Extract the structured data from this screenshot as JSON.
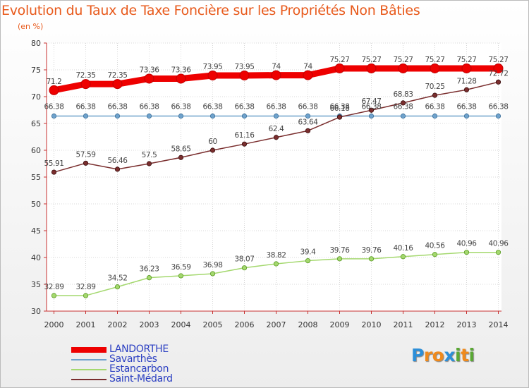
{
  "title": "Evolution du Taux de Taxe Foncière sur les Propriétés Non Bâties",
  "subtitle": "(en %)",
  "logo": {
    "text": "Proxiti",
    "letters": [
      {
        "ch": "P",
        "color": "#2d8fd8"
      },
      {
        "ch": "r",
        "color": "#f08a1c"
      },
      {
        "ch": "o",
        "color": "#f08a1c"
      },
      {
        "ch": "x",
        "color": "#2d8fd8"
      },
      {
        "ch": "i",
        "color": "#5aa834"
      },
      {
        "ch": "t",
        "color": "#f08a1c"
      },
      {
        "ch": "i",
        "color": "#5aa834"
      }
    ]
  },
  "chart_data": {
    "type": "line",
    "title": "Evolution du Taux de Taxe Foncière sur les Propriétés Non Bâties",
    "ylabel": "(en %)",
    "xlabel": "",
    "ylim": [
      30,
      80
    ],
    "yticks": [
      30,
      35,
      40,
      45,
      50,
      55,
      60,
      65,
      70,
      75,
      80
    ],
    "grid": true,
    "legend_position": "bottom-left",
    "categories": [
      "2000",
      "2001",
      "2002",
      "2003",
      "2004",
      "2005",
      "2006",
      "2007",
      "2008",
      "2009",
      "2010",
      "2011",
      "2012",
      "2013",
      "2014"
    ],
    "series": [
      {
        "name": "LANDORTHE",
        "color": "#ee0000",
        "values": [
          71.2,
          72.35,
          72.35,
          73.36,
          73.36,
          73.95,
          73.95,
          74,
          74,
          75.27,
          75.27,
          75.27,
          75.27,
          75.27,
          75.27
        ],
        "labels": [
          "71.2",
          "72.35",
          "72.35",
          "73.36",
          "73.36",
          "73.95",
          "73.95",
          "74",
          "74",
          "75.27",
          "75.27",
          "75.27",
          "75.27",
          "75.27",
          "75.27"
        ]
      },
      {
        "name": "Savarthès",
        "color": "#6fa2cc",
        "values": [
          66.38,
          66.38,
          66.38,
          66.38,
          66.38,
          66.38,
          66.38,
          66.38,
          66.38,
          66.38,
          66.38,
          66.38,
          66.38,
          66.38,
          66.38
        ],
        "labels": [
          "66.38",
          "66.38",
          "66.38",
          "66.38",
          "66.38",
          "66.38",
          "66.38",
          "66.38",
          "66.38",
          "66.38",
          "66.38",
          "66.38",
          "66.38",
          "66.38",
          "66.38"
        ]
      },
      {
        "name": "Estancarbon",
        "color": "#a4d86e",
        "values": [
          32.89,
          32.89,
          34.52,
          36.23,
          36.59,
          36.98,
          38.07,
          38.82,
          39.4,
          39.76,
          39.76,
          40.16,
          40.56,
          40.96,
          40.96
        ],
        "labels": [
          "32.89",
          "32.89",
          "34.52",
          "36.23",
          "36.59",
          "36.98",
          "38.07",
          "38.82",
          "39.4",
          "39.76",
          "39.76",
          "40.16",
          "40.56",
          "40.96",
          "40.96"
        ]
      },
      {
        "name": "Saint-Médard",
        "color": "#7a2e2e",
        "values": [
          55.91,
          57.59,
          56.46,
          57.5,
          58.65,
          60,
          61.16,
          62.4,
          63.64,
          66.18,
          67.47,
          68.83,
          70.25,
          71.28,
          72.72
        ],
        "labels": [
          "55.91",
          "57.59",
          "56.46",
          "57.5",
          "58.65",
          "60",
          "61.16",
          "62.4",
          "63.64",
          "66.18",
          "67.47",
          "68.83",
          "70.25",
          "71.28",
          "72.72"
        ]
      }
    ]
  }
}
